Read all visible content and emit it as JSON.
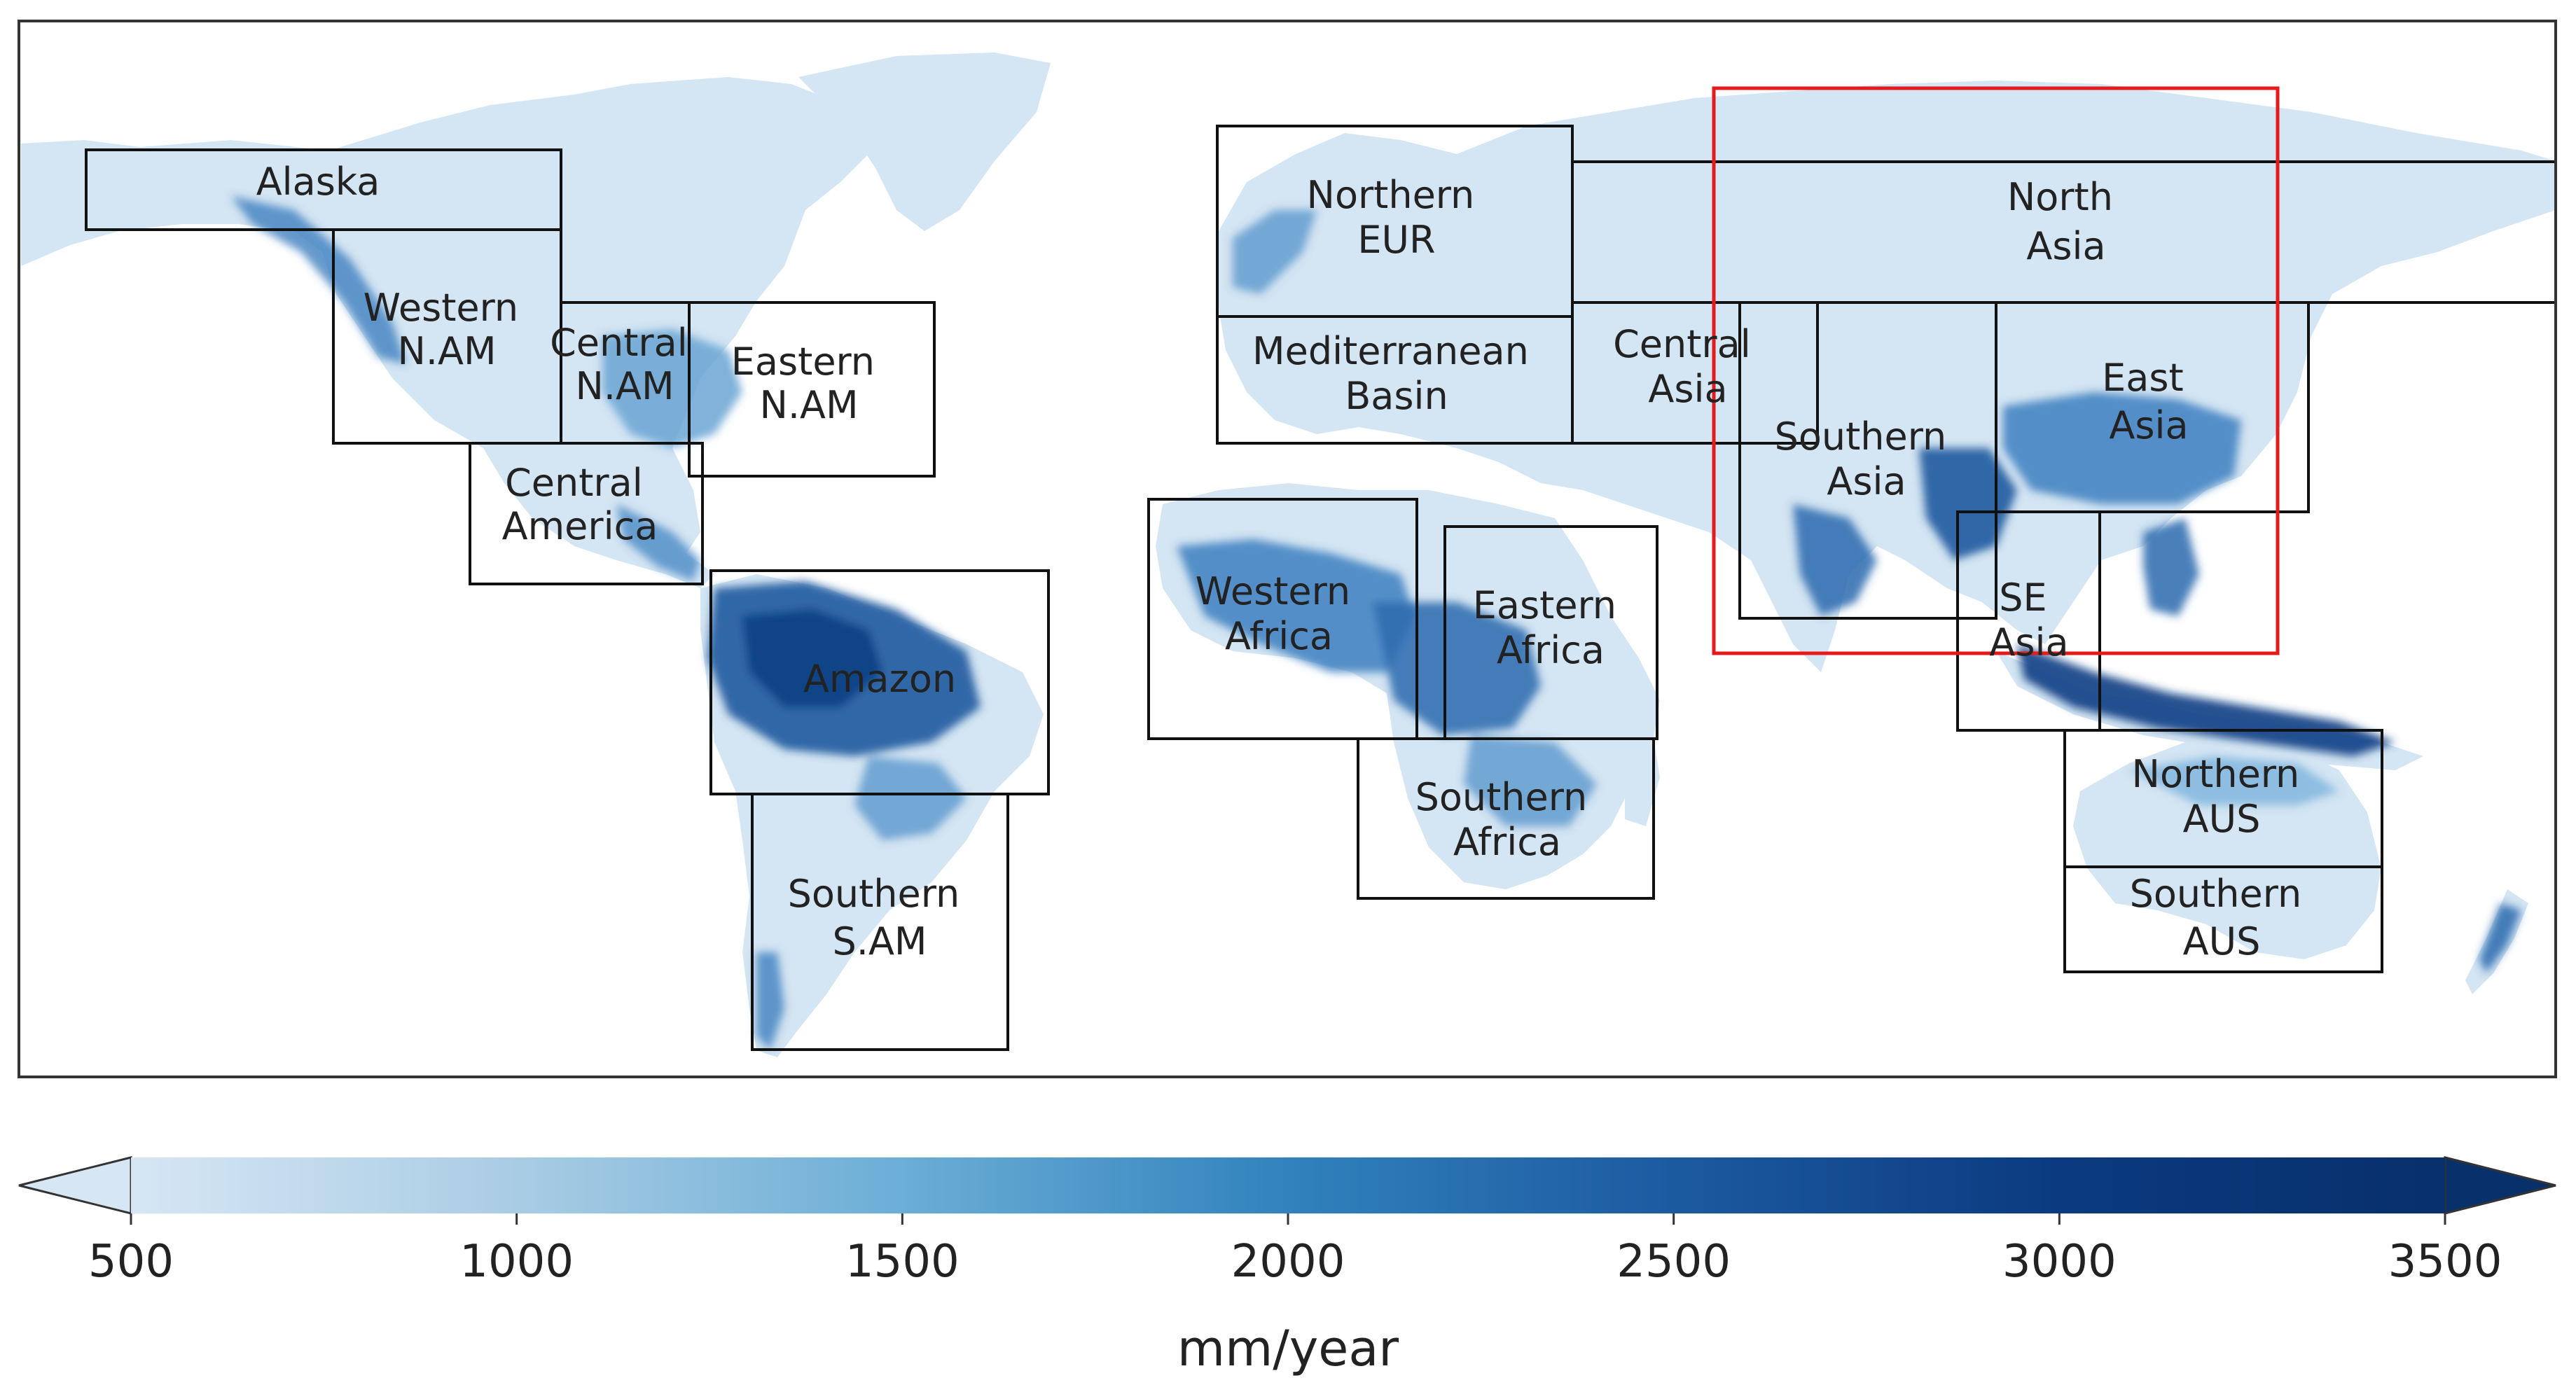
{
  "colorbar": {
    "min": 500,
    "max": 3500,
    "ticks": [
      "500",
      "1000",
      "1500",
      "2000",
      "2500",
      "3000",
      "3500"
    ],
    "unit": "mm/year",
    "colors": [
      "#d6e6f4",
      "#a9cce4",
      "#6baed6",
      "#3182bd",
      "#1c5aa0",
      "#0b3a80",
      "#08306b"
    ],
    "extend": "both"
  },
  "regions": [
    {
      "id": "alaska",
      "lines": [
        "Alaska"
      ]
    },
    {
      "id": "western-n-am",
      "lines": [
        "Western",
        "N.AM"
      ]
    },
    {
      "id": "central-n-am",
      "lines": [
        "Central",
        "N.AM"
      ]
    },
    {
      "id": "eastern-n-am",
      "lines": [
        "Eastern",
        "N.AM"
      ]
    },
    {
      "id": "central-america",
      "lines": [
        "Central",
        "America"
      ]
    },
    {
      "id": "amazon",
      "lines": [
        "Amazon"
      ]
    },
    {
      "id": "southern-s-am",
      "lines": [
        "Southern",
        "S.AM"
      ]
    },
    {
      "id": "northern-eur",
      "lines": [
        "Northern",
        "EUR"
      ]
    },
    {
      "id": "mediterranean-basin",
      "lines": [
        "Mediterranean",
        "Basin"
      ]
    },
    {
      "id": "western-africa",
      "lines": [
        "Western",
        "Africa"
      ]
    },
    {
      "id": "eastern-africa",
      "lines": [
        "Eastern",
        "Africa"
      ]
    },
    {
      "id": "southern-africa",
      "lines": [
        "Southern",
        "Africa"
      ]
    },
    {
      "id": "north-asia",
      "lines": [
        "North",
        "Asia"
      ]
    },
    {
      "id": "central-asia",
      "lines": [
        "Central",
        "Asia"
      ]
    },
    {
      "id": "southern-asia",
      "lines": [
        "Southern",
        "Asia"
      ]
    },
    {
      "id": "east-asia",
      "lines": [
        "East",
        "Asia"
      ]
    },
    {
      "id": "se-asia",
      "lines": [
        "SE",
        "Asia"
      ]
    },
    {
      "id": "northern-aus",
      "lines": [
        "Northern",
        "AUS"
      ]
    },
    {
      "id": "southern-aus",
      "lines": [
        "Southern",
        "AUS"
      ]
    }
  ],
  "highlight": {
    "color": "#e41a1c"
  }
}
